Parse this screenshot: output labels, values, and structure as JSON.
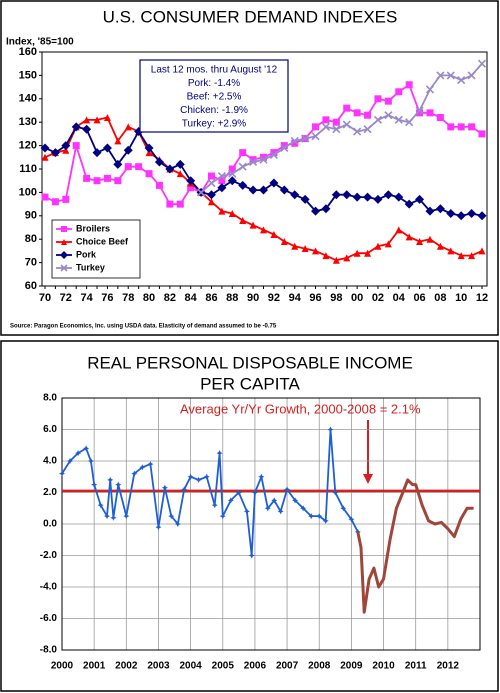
{
  "chart_data": [
    {
      "type": "line",
      "title": "U.S. CONSUMER DEMAND INDEXES",
      "y_label": "Index, '85=100",
      "categories": [
        "70",
        null,
        "72",
        null,
        "74",
        null,
        "76",
        null,
        "78",
        null,
        "80",
        null,
        "82",
        null,
        "84",
        null,
        "86",
        null,
        "88",
        null,
        "90",
        null,
        "92",
        null,
        "94",
        null,
        "96",
        null,
        "98",
        null,
        "00",
        null,
        "02",
        null,
        "04",
        null,
        "06",
        null,
        "08",
        null,
        "10",
        null,
        "12"
      ],
      "series": [
        {
          "name": "Broilers",
          "color": "#ff33ff",
          "marker": "square",
          "values": [
            98,
            96,
            97,
            120,
            106,
            105,
            106,
            105,
            111,
            111,
            108,
            103,
            95,
            95,
            102,
            100,
            107,
            105,
            110,
            117,
            114,
            115,
            117,
            120,
            121,
            123,
            128,
            131,
            130,
            136,
            134,
            133,
            140,
            139,
            143,
            146,
            134,
            134,
            132,
            128,
            128,
            128,
            125
          ]
        },
        {
          "name": "Choice Beef",
          "color": "#ff0000",
          "marker": "triangle",
          "values": [
            115,
            117,
            118,
            128,
            131,
            131,
            132,
            122,
            128,
            126,
            117,
            114,
            110,
            108,
            104,
            100,
            96,
            92,
            91,
            88,
            86,
            84,
            82,
            79,
            77,
            76,
            75,
            73,
            71,
            72,
            74,
            74,
            77,
            78,
            84,
            81,
            79,
            80,
            77,
            75,
            73,
            73,
            75
          ]
        },
        {
          "name": "Pork",
          "color": "#000080",
          "marker": "diamond",
          "values": [
            119,
            117,
            120,
            128,
            127,
            117,
            119,
            112,
            118,
            126,
            119,
            113,
            110,
            112,
            105,
            100,
            99,
            102,
            105,
            103,
            101,
            101,
            104,
            101,
            99,
            97,
            92,
            93,
            99,
            99,
            98,
            98,
            97,
            99,
            98,
            95,
            97,
            92,
            93,
            91,
            90,
            91,
            90
          ]
        },
        {
          "name": "Turkey",
          "color": "#9988cc",
          "marker": "x",
          "values": [
            null,
            null,
            null,
            null,
            null,
            null,
            null,
            null,
            null,
            null,
            null,
            null,
            null,
            null,
            null,
            100,
            104,
            107,
            108,
            111,
            113,
            114,
            116,
            119,
            122,
            123,
            124,
            128,
            127,
            129,
            126,
            127,
            131,
            133,
            131,
            130,
            135,
            144,
            150,
            150,
            148,
            150,
            155
          ]
        }
      ],
      "ylim": [
        60,
        160
      ],
      "yticks": [
        60,
        70,
        80,
        90,
        100,
        110,
        120,
        130,
        140,
        150,
        160
      ],
      "grid": false,
      "legend": "lower left",
      "annotation": [
        "Last 12 mos. thru August '12",
        "Pork: -1.4%",
        "Beef: +2.5%",
        "Chicken: -1.9%",
        "Turkey: +2.9%"
      ],
      "source": "Source: Paragon Economics, Inc. using USDA data.  Elasticity of demand assumed to be -0.75"
    },
    {
      "type": "line",
      "title": [
        "REAL PERSONAL DISPOSABLE INCOME",
        "PER CAPITA"
      ],
      "series": [
        {
          "color": "#1f5fd6",
          "marker": "star",
          "x": [
            2000.0,
            2000.25,
            2000.5,
            2000.75,
            2000.9,
            2001.0,
            2001.2,
            2001.4,
            2001.5,
            2001.6,
            2001.75,
            2002.0,
            2002.25,
            2002.5,
            2002.75,
            2003.0,
            2003.2,
            2003.4,
            2003.6,
            2003.8,
            2004.0,
            2004.25,
            2004.5,
            2004.75,
            2004.9,
            2005.0,
            2005.25,
            2005.5,
            2005.75,
            2005.9,
            2006.0,
            2006.2,
            2006.4,
            2006.6,
            2006.8,
            2007.0,
            2007.25,
            2007.5,
            2007.75,
            2008.0,
            2008.2,
            2008.35,
            2008.5,
            2008.75,
            2009.0,
            2009.2
          ],
          "values": [
            3.2,
            4.0,
            4.5,
            4.8,
            4.0,
            2.5,
            1.2,
            0.5,
            2.8,
            0.4,
            2.5,
            0.5,
            3.2,
            3.6,
            3.8,
            -0.2,
            2.3,
            0.5,
            0.0,
            2.2,
            3.0,
            2.8,
            3.0,
            1.2,
            4.5,
            0.5,
            1.5,
            2.0,
            0.8,
            -2.0,
            2.0,
            3.0,
            1.0,
            1.5,
            0.8,
            2.2,
            1.5,
            1.0,
            0.5,
            0.5,
            0.2,
            6.0,
            2.0,
            1.0,
            0.3,
            -0.5
          ]
        },
        {
          "color": "#a0453a",
          "marker": "none",
          "x": [
            2009.2,
            2009.3,
            2009.4,
            2009.55,
            2009.7,
            2009.85,
            2010.0,
            2010.2,
            2010.4,
            2010.6,
            2010.75,
            2010.9,
            2011.0,
            2011.2,
            2011.4,
            2011.6,
            2011.8,
            2012.0,
            2012.2,
            2012.4,
            2012.6,
            2012.8
          ],
          "values": [
            -0.5,
            -1.5,
            -5.6,
            -3.5,
            -2.8,
            -4.0,
            -3.5,
            -1.0,
            1.0,
            2.0,
            2.8,
            2.5,
            2.5,
            1.2,
            0.2,
            0.0,
            0.1,
            -0.3,
            -0.8,
            0.3,
            1.0,
            1.0
          ]
        }
      ],
      "xlim": [
        2000,
        2013
      ],
      "xticks": [
        2000,
        2001,
        2002,
        2003,
        2004,
        2005,
        2006,
        2007,
        2008,
        2009,
        2010,
        2011,
        2012
      ],
      "ylim": [
        -8,
        8
      ],
      "yticks": [
        {
          "value": -8,
          "label": "-8.0"
        },
        {
          "value": -6,
          "label": "-6.0"
        },
        {
          "value": -4,
          "label": "-4.0"
        },
        {
          "value": -2,
          "label": "-2.0"
        },
        {
          "value": 0,
          "label": "0.0"
        },
        {
          "value": 2,
          "label": "2.0"
        },
        {
          "value": 4,
          "label": "4.0"
        },
        {
          "value": 6,
          "label": "6.0"
        },
        {
          "value": 8,
          "label": "8.0"
        }
      ],
      "grid": true,
      "reference_line": {
        "value": 2.1,
        "label": "Average Yr/Yr Growth, 2000-2008 = 2.1%",
        "color": "#d42020"
      }
    }
  ]
}
